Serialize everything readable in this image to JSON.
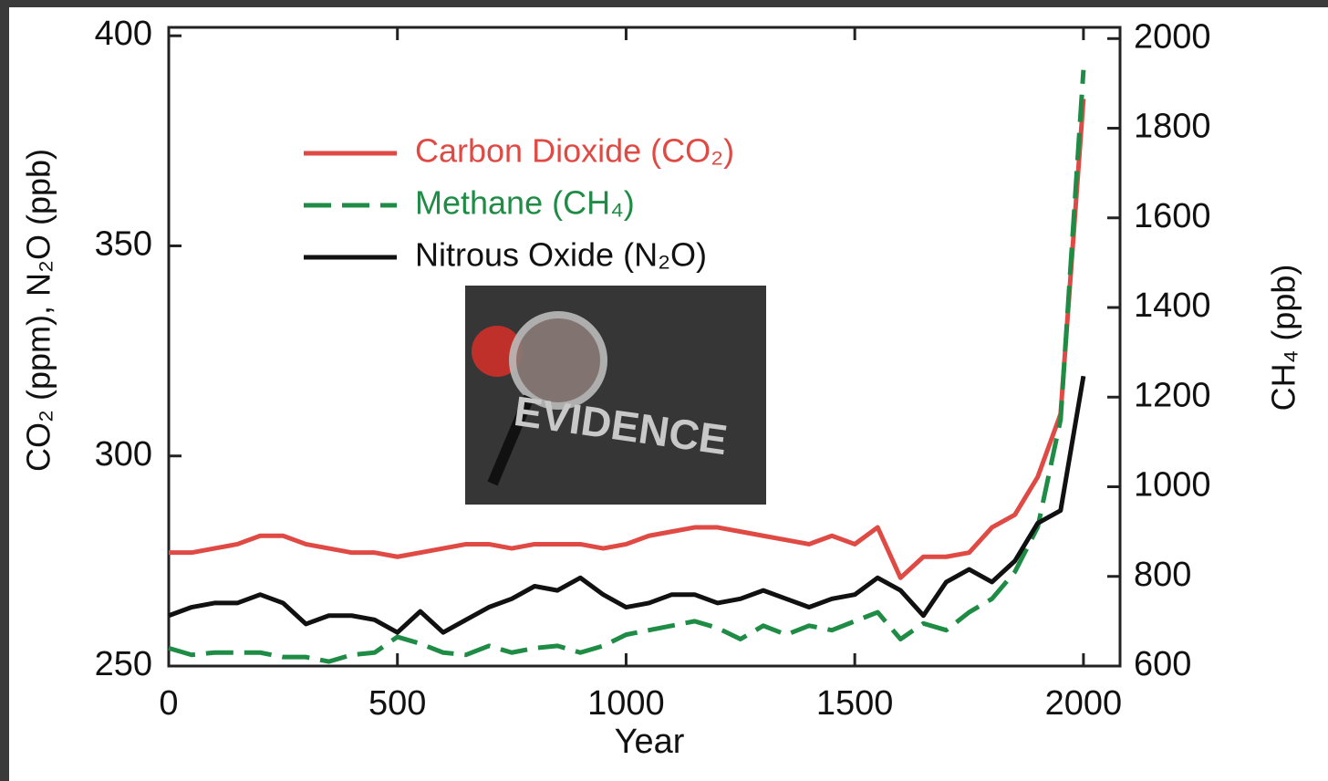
{
  "chart_data": {
    "type": "line",
    "x_label": "Year",
    "y_label": "CO₂ (ppm), N₂O (ppb)",
    "y2_label": "CH₄ (ppb)",
    "annotation": "EVIDENCE",
    "x": [
      0,
      50,
      100,
      150,
      200,
      250,
      300,
      350,
      400,
      450,
      500,
      550,
      600,
      650,
      700,
      750,
      800,
      850,
      900,
      950,
      1000,
      1050,
      1100,
      1150,
      1200,
      1250,
      1300,
      1350,
      1400,
      1450,
      1500,
      1550,
      1600,
      1650,
      1700,
      1750,
      1800,
      1850,
      1900,
      1950,
      2000
    ],
    "xlim": [
      0,
      2080
    ],
    "xticks": [
      0,
      500,
      1000,
      1500,
      2000
    ],
    "ylim": [
      250,
      402
    ],
    "yticks": [
      250,
      300,
      350,
      400
    ],
    "y2lim": [
      600,
      2025
    ],
    "y2ticks": [
      600,
      800,
      1000,
      1200,
      1400,
      1600,
      1800,
      2000
    ],
    "legend": "upper left",
    "series": [
      {
        "name": "Carbon Dioxide (CO₂)",
        "color": "#e04a44",
        "dash": "solid",
        "axis": "y",
        "values": [
          277,
          277,
          278,
          279,
          281,
          281,
          279,
          278,
          277,
          277,
          276,
          277,
          278,
          279,
          279,
          278,
          279,
          279,
          279,
          278,
          279,
          281,
          282,
          283,
          283,
          282,
          281,
          280,
          279,
          281,
          279,
          283,
          271,
          276,
          276,
          277,
          283,
          286,
          295,
          310,
          385
        ]
      },
      {
        "name": "Methane (CH₄)",
        "color": "#1f8c45",
        "dash": "dashed",
        "axis": "y2",
        "values": [
          640,
          625,
          630,
          630,
          630,
          620,
          620,
          610,
          625,
          630,
          665,
          650,
          630,
          625,
          645,
          630,
          640,
          645,
          630,
          645,
          670,
          680,
          690,
          700,
          685,
          660,
          690,
          670,
          690,
          680,
          700,
          720,
          660,
          695,
          680,
          720,
          750,
          810,
          910,
          1150,
          1930
        ]
      },
      {
        "name": "Nitrous Oxide (N₂O)",
        "color": "#111111",
        "dash": "solid",
        "axis": "y",
        "values": [
          262,
          264,
          265,
          265,
          267,
          265,
          260,
          262,
          262,
          261,
          258,
          263,
          258,
          261,
          264,
          266,
          269,
          268,
          271,
          267,
          264,
          265,
          267,
          267,
          265,
          266,
          268,
          266,
          264,
          266,
          267,
          271,
          268,
          262,
          270,
          273,
          270,
          275,
          284,
          287,
          319
        ]
      }
    ]
  }
}
